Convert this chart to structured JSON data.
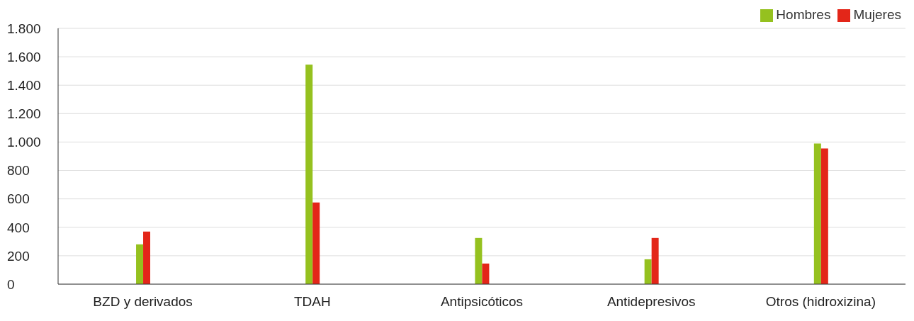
{
  "chart_data": {
    "type": "bar",
    "categories": [
      "BZD y derivados",
      "TDAH",
      "Antipsicóticos",
      "Antidepresivos",
      "Otros (hidroxizina)"
    ],
    "series": [
      {
        "name": "Hombres",
        "color": "#95c11f",
        "values": [
          280,
          1545,
          325,
          175,
          990
        ]
      },
      {
        "name": "Mujeres",
        "color": "#e32619",
        "values": [
          370,
          575,
          145,
          325,
          955
        ]
      }
    ],
    "ylim": [
      0,
      1800
    ],
    "yticks": [
      0,
      200,
      400,
      600,
      800,
      {
        "value": 1000,
        "label": "1.000"
      },
      {
        "value": 1200,
        "label": "1.200"
      },
      {
        "value": 1400,
        "label": "1.400"
      },
      {
        "value": 1600,
        "label": "1.600"
      },
      {
        "value": 1800,
        "label": "1.800"
      }
    ],
    "grid": "y",
    "legend": "top right"
  }
}
